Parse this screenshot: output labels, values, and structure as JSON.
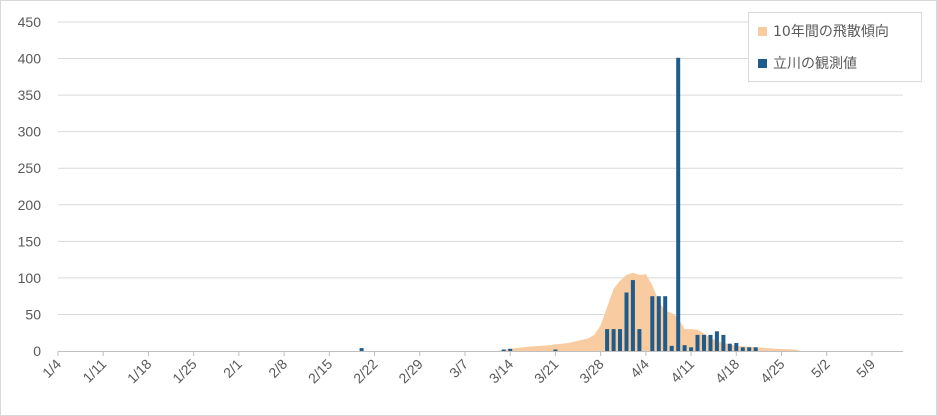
{
  "chart_data": {
    "type": "bar",
    "x_type": "date",
    "x_start": "1/4",
    "x_ticks": [
      "1/4",
      "1/11",
      "1/18",
      "1/25",
      "2/1",
      "2/8",
      "2/15",
      "2/22",
      "2/29",
      "3/7",
      "3/14",
      "3/21",
      "3/28",
      "4/4",
      "4/11",
      "4/18",
      "4/25",
      "5/2",
      "5/9"
    ],
    "ylim": [
      0,
      450
    ],
    "y_ticks": [
      0,
      50,
      100,
      150,
      200,
      250,
      300,
      350,
      400,
      450
    ],
    "grid": true,
    "legend_position": "top-right",
    "series": [
      {
        "name": "10年間の飛散傾向",
        "kind": "area",
        "color": "#f8cba0",
        "points": [
          [
            "3/12",
            0
          ],
          [
            "3/14",
            3
          ],
          [
            "3/17",
            6
          ],
          [
            "3/20",
            8
          ],
          [
            "3/23",
            11
          ],
          [
            "3/26",
            17
          ],
          [
            "3/27",
            22
          ],
          [
            "3/28",
            35
          ],
          [
            "3/29",
            60
          ],
          [
            "3/30",
            85
          ],
          [
            "3/31",
            96
          ],
          [
            "4/1",
            104
          ],
          [
            "4/2",
            107
          ],
          [
            "4/3",
            104
          ],
          [
            "4/4",
            105
          ],
          [
            "4/5",
            90
          ],
          [
            "4/6",
            68
          ],
          [
            "4/7",
            55
          ],
          [
            "4/8",
            52
          ],
          [
            "4/9",
            45
          ],
          [
            "4/10",
            30
          ],
          [
            "4/11",
            30
          ],
          [
            "4/12",
            29
          ],
          [
            "4/13",
            24
          ],
          [
            "4/14",
            18
          ],
          [
            "4/15",
            14
          ],
          [
            "4/16",
            11
          ],
          [
            "4/17",
            9
          ],
          [
            "4/18",
            7
          ],
          [
            "4/21",
            5
          ],
          [
            "4/24",
            3
          ],
          [
            "4/27",
            2
          ],
          [
            "4/28",
            0
          ]
        ]
      },
      {
        "name": "立川の観測値",
        "kind": "bar",
        "color": "#1f5c8b",
        "points": [
          [
            "2/20",
            4
          ],
          [
            "3/13",
            2
          ],
          [
            "3/14",
            3
          ],
          [
            "3/21",
            2
          ],
          [
            "3/29",
            30
          ],
          [
            "3/30",
            30
          ],
          [
            "3/31",
            30
          ],
          [
            "4/1",
            80
          ],
          [
            "4/2",
            97
          ],
          [
            "4/3",
            30
          ],
          [
            "4/5",
            75
          ],
          [
            "4/6",
            75
          ],
          [
            "4/7",
            75
          ],
          [
            "4/8",
            7
          ],
          [
            "4/9",
            401
          ],
          [
            "4/10",
            8
          ],
          [
            "4/11",
            5
          ],
          [
            "4/12",
            22
          ],
          [
            "4/13",
            22
          ],
          [
            "4/14",
            22
          ],
          [
            "4/15",
            27
          ],
          [
            "4/16",
            22
          ],
          [
            "4/17",
            10
          ],
          [
            "4/18",
            11
          ],
          [
            "4/19",
            5
          ],
          [
            "4/20",
            5
          ],
          [
            "4/21",
            5
          ]
        ]
      }
    ]
  }
}
